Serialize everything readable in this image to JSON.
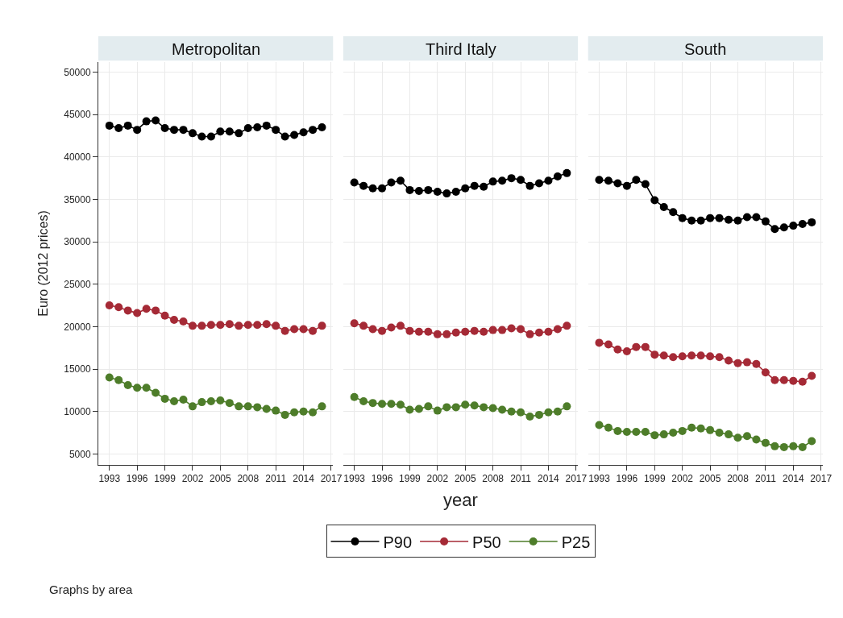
{
  "chart_data": [
    {
      "type": "line",
      "title": "Metropolitan",
      "ylabel": "Euro (2012 prices)",
      "x": [
        1993,
        1994,
        1995,
        1996,
        1997,
        1998,
        1999,
        2000,
        2001,
        2002,
        2003,
        2004,
        2005,
        2006,
        2007,
        2008,
        2009,
        2010,
        2011,
        2012,
        2013,
        2014,
        2015,
        2016
      ],
      "xlim": [
        1991.8,
        2017.2
      ],
      "xticks": [
        1993,
        1996,
        1999,
        2002,
        2005,
        2008,
        2011,
        2014,
        2017
      ],
      "ylim": [
        3700,
        51200
      ],
      "yticks": [
        5000,
        10000,
        15000,
        20000,
        25000,
        30000,
        35000,
        40000,
        45000,
        50000
      ],
      "grid": true,
      "marker": "circle",
      "line_style": "solid",
      "legend": "bottom",
      "annotations": [
        "Graphs by area"
      ],
      "series": [
        {
          "name": "P90",
          "color": "#000000",
          "values": [
            43700,
            43400,
            43700,
            43200,
            44200,
            44300,
            43400,
            43200,
            43200,
            42800,
            42400,
            42400,
            43000,
            43000,
            42800,
            43400,
            43500,
            43700,
            43200,
            42400,
            42600,
            42900,
            43200,
            43500
          ]
        },
        {
          "name": "P50",
          "color": "#a52a36",
          "values": [
            22500,
            22300,
            21900,
            21600,
            22100,
            21900,
            21300,
            20800,
            20600,
            20100,
            20100,
            20200,
            20200,
            20300,
            20100,
            20200,
            20200,
            20300,
            20100,
            19500,
            19700,
            19700,
            19500,
            20100
          ]
        },
        {
          "name": "P25",
          "color": "#4e7d2a",
          "values": [
            14000,
            13700,
            13100,
            12800,
            12800,
            12200,
            11500,
            11200,
            11400,
            10600,
            11100,
            11200,
            11300,
            11000,
            10600,
            10600,
            10500,
            10300,
            10100,
            9600,
            9900,
            10000,
            9900,
            10600
          ]
        }
      ]
    },
    {
      "type": "line",
      "title": "Third Italy",
      "xlabel": "year",
      "x": [
        1993,
        1994,
        1995,
        1996,
        1997,
        1998,
        1999,
        2000,
        2001,
        2002,
        2003,
        2004,
        2005,
        2006,
        2007,
        2008,
        2009,
        2010,
        2011,
        2012,
        2013,
        2014,
        2015,
        2016
      ],
      "xlim": [
        1991.8,
        2017.2
      ],
      "xticks": [
        1993,
        1996,
        1999,
        2002,
        2005,
        2008,
        2011,
        2014,
        2017
      ],
      "ylim": [
        3700,
        51200
      ],
      "yticks": [
        5000,
        10000,
        15000,
        20000,
        25000,
        30000,
        35000,
        40000,
        45000,
        50000
      ],
      "tick_labels": "x",
      "grid": true,
      "marker": "circle",
      "line_style": "solid",
      "legend": "bottom",
      "series": [
        {
          "name": "P90",
          "color": "#000000",
          "values": [
            37000,
            36600,
            36300,
            36300,
            37000,
            37200,
            36100,
            36000,
            36100,
            35900,
            35700,
            35900,
            36300,
            36600,
            36500,
            37100,
            37200,
            37500,
            37300,
            36600,
            36900,
            37200,
            37700,
            38100
          ]
        },
        {
          "name": "P50",
          "color": "#a52a36",
          "values": [
            20400,
            20100,
            19700,
            19500,
            19900,
            20100,
            19500,
            19400,
            19400,
            19100,
            19100,
            19300,
            19400,
            19500,
            19400,
            19600,
            19600,
            19800,
            19700,
            19100,
            19300,
            19400,
            19700,
            20100
          ]
        },
        {
          "name": "P25",
          "color": "#4e7d2a",
          "values": [
            11700,
            11200,
            11000,
            10900,
            10900,
            10800,
            10200,
            10300,
            10600,
            10100,
            10500,
            10500,
            10800,
            10700,
            10500,
            10400,
            10200,
            10000,
            9900,
            9400,
            9600,
            9900,
            10000,
            10600
          ]
        }
      ]
    },
    {
      "type": "line",
      "title": "South",
      "x": [
        1993,
        1994,
        1995,
        1996,
        1997,
        1998,
        1999,
        2000,
        2001,
        2002,
        2003,
        2004,
        2005,
        2006,
        2007,
        2008,
        2009,
        2010,
        2011,
        2012,
        2013,
        2014,
        2015,
        2016
      ],
      "xlim": [
        1991.8,
        2017.2
      ],
      "xticks": [
        1993,
        1996,
        1999,
        2002,
        2005,
        2008,
        2011,
        2014,
        2017
      ],
      "ylim": [
        3700,
        51200
      ],
      "yticks": [
        5000,
        10000,
        15000,
        20000,
        25000,
        30000,
        35000,
        40000,
        45000,
        50000
      ],
      "tick_labels": "x",
      "grid": true,
      "marker": "circle",
      "line_style": "solid",
      "legend": "bottom",
      "series": [
        {
          "name": "P90",
          "color": "#000000",
          "values": [
            37300,
            37200,
            36900,
            36600,
            37300,
            36800,
            34900,
            34100,
            33500,
            32800,
            32500,
            32500,
            32800,
            32800,
            32600,
            32500,
            32900,
            32900,
            32400,
            31500,
            31700,
            31900,
            32100,
            32300
          ]
        },
        {
          "name": "P50",
          "color": "#a52a36",
          "values": [
            18100,
            17900,
            17300,
            17100,
            17600,
            17600,
            16700,
            16600,
            16400,
            16500,
            16600,
            16600,
            16500,
            16400,
            16000,
            15700,
            15800,
            15600,
            14600,
            13700,
            13700,
            13600,
            13500,
            14200
          ]
        },
        {
          "name": "P25",
          "color": "#4e7d2a",
          "values": [
            8400,
            8100,
            7700,
            7600,
            7600,
            7600,
            7200,
            7300,
            7500,
            7700,
            8100,
            8000,
            7800,
            7500,
            7300,
            6900,
            7100,
            6700,
            6300,
            5900,
            5800,
            5900,
            5800,
            6500
          ]
        }
      ]
    }
  ]
}
